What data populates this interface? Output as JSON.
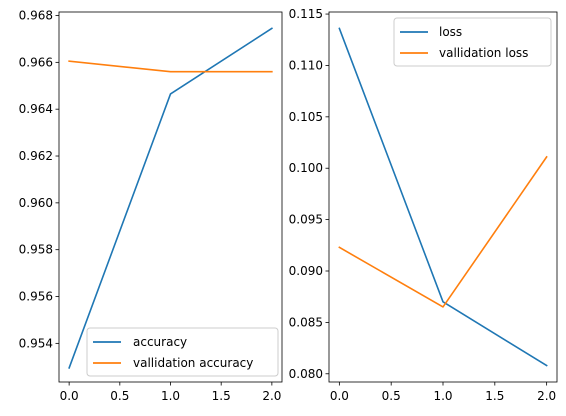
{
  "chart_data": [
    {
      "type": "line",
      "title": "",
      "xlabel": "",
      "ylabel": "",
      "x": [
        0,
        1,
        2
      ],
      "xlim": [
        -0.1,
        2.1
      ],
      "ylim": [
        0.95235,
        0.96815
      ],
      "xticks": [
        0.0,
        0.5,
        1.0,
        1.5,
        2.0
      ],
      "xtick_labels": [
        "0.0",
        "0.5",
        "1.0",
        "1.5",
        "2.0"
      ],
      "yticks": [
        0.954,
        0.956,
        0.958,
        0.96,
        0.962,
        0.964,
        0.966,
        0.968
      ],
      "ytick_labels": [
        "0.954",
        "0.956",
        "0.958",
        "0.960",
        "0.962",
        "0.964",
        "0.966",
        "0.968"
      ],
      "grid": false,
      "legend_position": "lower-right",
      "series": [
        {
          "name": "accuracy",
          "color": "#1f77b4",
          "values": [
            0.95295,
            0.96465,
            0.96745
          ]
        },
        {
          "name": "vallidation accuracy",
          "color": "#ff7f0e",
          "values": [
            0.96605,
            0.9656,
            0.9656
          ]
        }
      ]
    },
    {
      "type": "line",
      "title": "",
      "xlabel": "",
      "ylabel": "",
      "x": [
        0,
        1,
        2
      ],
      "xlim": [
        -0.1,
        2.1
      ],
      "ylim": [
        0.0792,
        0.1152
      ],
      "xticks": [
        0.0,
        0.5,
        1.0,
        1.5,
        2.0
      ],
      "xtick_labels": [
        "0.0",
        "0.5",
        "1.0",
        "1.5",
        "2.0"
      ],
      "yticks": [
        0.08,
        0.085,
        0.09,
        0.095,
        0.1,
        0.105,
        0.11,
        0.115
      ],
      "ytick_labels": [
        "0.080",
        "0.085",
        "0.090",
        "0.095",
        "0.100",
        "0.105",
        "0.110",
        "0.115"
      ],
      "grid": false,
      "legend_position": "upper-right",
      "series": [
        {
          "name": "loss",
          "color": "#1f77b4",
          "values": [
            0.1136,
            0.087,
            0.0808
          ]
        },
        {
          "name": "vallidation loss",
          "color": "#ff7f0e",
          "values": [
            0.0923,
            0.0865,
            0.1011
          ]
        }
      ]
    }
  ]
}
